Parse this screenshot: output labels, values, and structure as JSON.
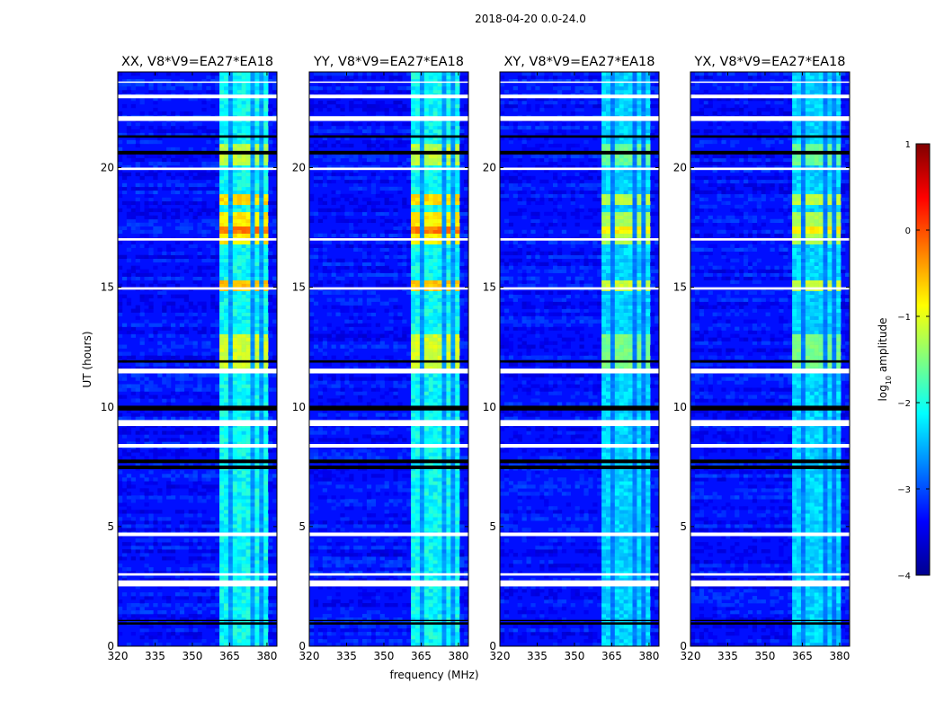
{
  "chart_data": {
    "type": "heatmap",
    "suptitle": "2018-04-20 0.0-24.0",
    "xlabel": "frequency (MHz)",
    "ylabel": "UT (hours)",
    "xlim": [
      320,
      384
    ],
    "ylim": [
      0,
      24
    ],
    "x_ticks": [
      320,
      335,
      350,
      365,
      380
    ],
    "x_tick_labels": [
      "320",
      "335",
      "350",
      "365",
      "380"
    ],
    "y_ticks": [
      0,
      5,
      10,
      15,
      20
    ],
    "y_tick_labels": [
      "0",
      "5",
      "10",
      "15",
      "20"
    ],
    "colormap": "jet",
    "colorbar": {
      "label": "log10 amplitude",
      "label_prefix": "log",
      "label_sub": "10",
      "label_suffix": " amplitude",
      "range": [
        -4,
        1
      ],
      "ticks": [
        -4,
        -3,
        -2,
        -1,
        0,
        1
      ],
      "tick_labels": [
        "−4",
        "−3",
        "−2",
        "−1",
        "0",
        "1"
      ]
    },
    "panels": [
      {
        "title": "XX, V8*V9=EA27*EA18",
        "polarization": "XX",
        "rfi_level": 1.0
      },
      {
        "title": "YY, V8*V9=EA27*EA18",
        "polarization": "YY",
        "rfi_level": 1.0
      },
      {
        "title": "XY, V8*V9=EA27*EA18",
        "polarization": "XY",
        "rfi_level": 0.8
      },
      {
        "title": "YX, V8*V9=EA27*EA18",
        "polarization": "YX",
        "rfi_level": 0.8
      }
    ],
    "background_log_amplitude": -3.3,
    "rfi_band_mhz": [
      361,
      381
    ],
    "rfi_channels_mhz": [
      [
        361,
        365
      ],
      [
        366,
        369.5
      ],
      [
        370.5,
        374
      ],
      [
        375,
        377.5
      ],
      [
        378.5,
        381
      ]
    ],
    "rfi_events": [
      {
        "t_start": 11.5,
        "t_end": 13.1,
        "log_amplitude": -1.1
      },
      {
        "t_start": 14.9,
        "t_end": 15.3,
        "log_amplitude": -0.6
      },
      {
        "t_start": 16.8,
        "t_end": 18.2,
        "log_amplitude": -0.8
      },
      {
        "t_start": 17.2,
        "t_end": 17.6,
        "log_amplitude": -0.2
      },
      {
        "t_start": 18.4,
        "t_end": 18.9,
        "log_amplitude": -0.7
      },
      {
        "t_start": 20.1,
        "t_end": 21.0,
        "log_amplitude": -1.2
      }
    ],
    "flagged_rows_white_hours": [
      [
        2.5,
        2.75
      ],
      [
        2.95,
        3.05
      ],
      [
        4.6,
        4.75
      ],
      [
        8.3,
        8.45
      ],
      [
        9.2,
        9.45
      ],
      [
        11.4,
        11.6
      ],
      [
        14.9,
        15.0
      ],
      [
        16.95,
        17.05
      ],
      [
        19.9,
        20.0
      ],
      [
        21.95,
        22.15
      ],
      [
        22.9,
        23.05
      ],
      [
        23.55,
        23.6
      ]
    ],
    "flagged_rows_black_hours": [
      [
        0.9,
        1.0
      ],
      [
        1.05,
        1.1
      ],
      [
        7.4,
        7.55
      ],
      [
        7.65,
        7.8
      ],
      [
        9.85,
        10.05
      ],
      [
        20.55,
        20.7
      ],
      [
        21.25,
        21.35
      ],
      [
        11.85,
        11.95
      ]
    ]
  }
}
